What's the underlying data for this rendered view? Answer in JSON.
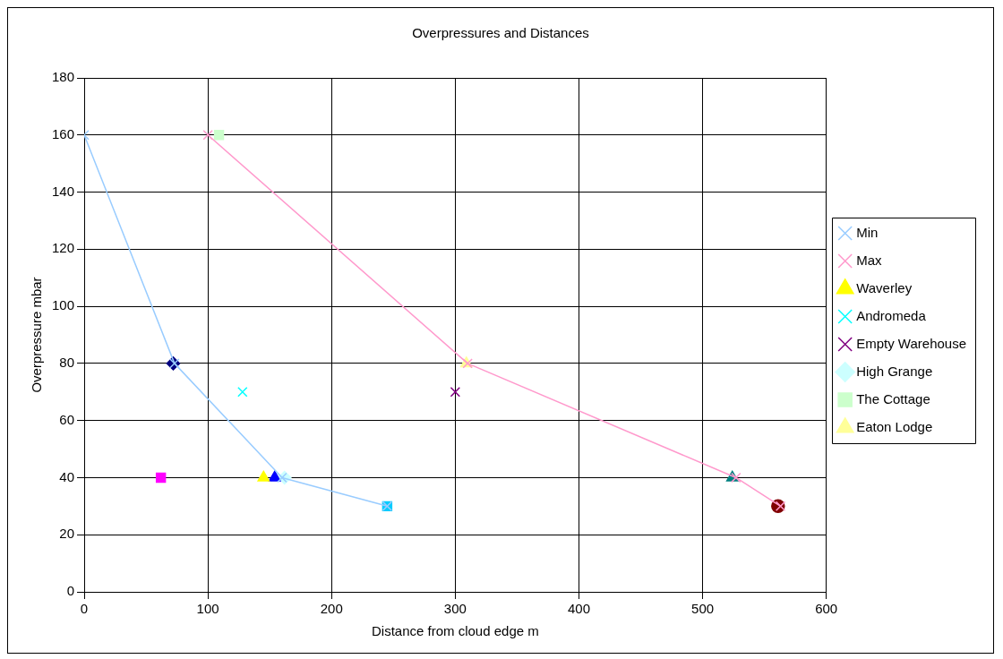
{
  "chart_data": {
    "type": "scatter",
    "title": "Overpressures and Distances",
    "xlabel": "Distance from cloud edge m",
    "ylabel": "Overpressure mbar",
    "xlim": [
      0,
      600
    ],
    "xticks": [
      0,
      100,
      200,
      300,
      400,
      500,
      600
    ],
    "ylim": [
      0,
      180
    ],
    "yticks": [
      0,
      20,
      40,
      60,
      80,
      100,
      120,
      140,
      160,
      180
    ],
    "grid": true,
    "legend": "right",
    "series": [
      {
        "color": "#000080",
        "marker": "diamond",
        "x": [
          72
        ],
        "values": [
          80
        ]
      },
      {
        "color": "#ff00ff",
        "marker": "square",
        "x": [
          62
        ],
        "values": [
          40
        ]
      },
      {
        "name": "Waverley",
        "color": "#ffff00",
        "marker": "triangle",
        "x": [
          145
        ],
        "values": [
          40
        ]
      },
      {
        "name": "Andromeda",
        "color": "#00ffff",
        "marker": "cross",
        "x": [
          128
        ],
        "values": [
          70
        ]
      },
      {
        "name": "Empty Warehouse",
        "color": "#800080",
        "marker": "cross",
        "x": [
          300
        ],
        "values": [
          70
        ]
      },
      {
        "color": "#800000",
        "marker": "circle",
        "x": [
          561
        ],
        "values": [
          30
        ]
      },
      {
        "color": "#008080",
        "marker": "triangle",
        "x": [
          524
        ],
        "values": [
          40
        ]
      },
      {
        "color": "#0000ff",
        "marker": "triangle",
        "x": [
          154
        ],
        "values": [
          40
        ]
      },
      {
        "color": "#00ccff",
        "marker": "square",
        "x": [
          245
        ],
        "values": [
          30
        ]
      },
      {
        "name": "High Grange",
        "color": "#ccffff",
        "marker": "diamond",
        "x": [
          162
        ],
        "values": [
          40
        ]
      },
      {
        "name": "The Cottage",
        "color": "#ccffcc",
        "marker": "square",
        "x": [
          109
        ],
        "values": [
          160
        ]
      },
      {
        "name": "Eaton Lodge",
        "color": "#ffff99",
        "marker": "triangle",
        "x": [
          309
        ],
        "values": [
          80
        ]
      },
      {
        "name": "Min",
        "type": "line",
        "color": "#99ccff",
        "marker": "cross",
        "x": [
          0,
          73,
          160,
          245
        ],
        "values": [
          160,
          80,
          40,
          30
        ]
      },
      {
        "name": "Max",
        "type": "line",
        "color": "#ff99cc",
        "marker": "cross",
        "x": [
          100,
          310,
          527,
          563
        ],
        "values": [
          160,
          80,
          40,
          30
        ]
      }
    ]
  }
}
